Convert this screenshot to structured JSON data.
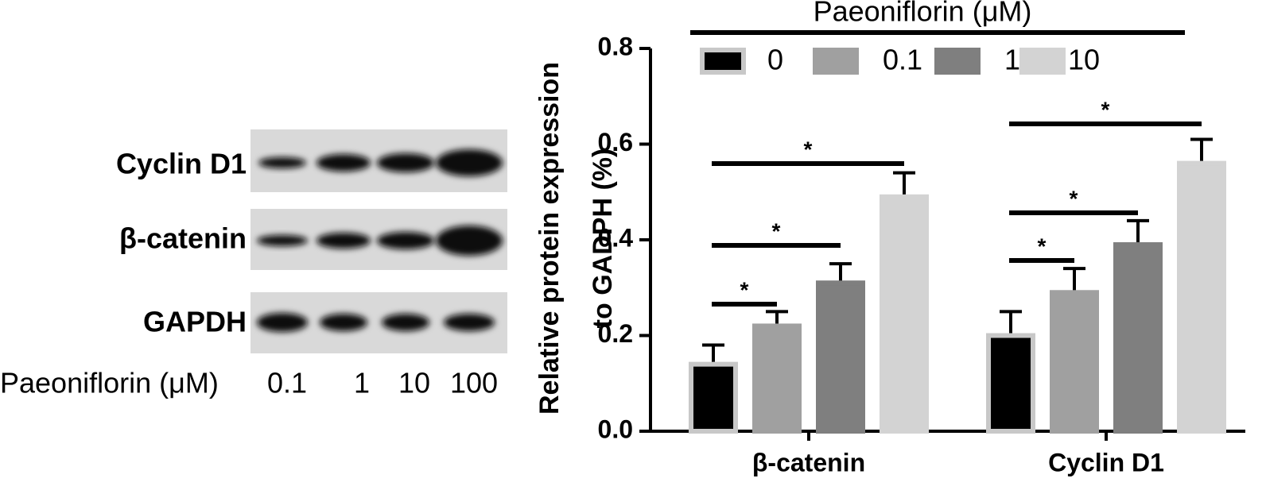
{
  "blot": {
    "rows": [
      "Cyclin D1",
      "β-catenin",
      "GAPDH"
    ],
    "treatment_label": "Paeoniflorin (μM)",
    "lanes": [
      "0.1",
      "1",
      "10",
      "100"
    ]
  },
  "chart_data": {
    "type": "bar",
    "legend_title": "Paeoniflorin (μM)",
    "ylabel": [
      "Relative protein expression",
      "to GADPH (%)"
    ],
    "categories": [
      "β-catenin",
      "Cyclin D1"
    ],
    "series": [
      {
        "name": "0",
        "color": "#000000",
        "values": [
          0.14,
          0.2
        ],
        "errors": [
          0.04,
          0.05
        ]
      },
      {
        "name": "0.1",
        "color": "#a0a0a0",
        "values": [
          0.22,
          0.29
        ],
        "errors": [
          0.03,
          0.05
        ]
      },
      {
        "name": "1",
        "color": "#7f7f7f",
        "values": [
          0.31,
          0.39
        ],
        "errors": [
          0.04,
          0.05
        ]
      },
      {
        "name": "10",
        "color": "#d3d3d3",
        "values": [
          0.49,
          0.56
        ],
        "errors": [
          0.05,
          0.05
        ]
      }
    ],
    "ylim": [
      0,
      0.8
    ],
    "yticks": [
      {
        "value": 0,
        "label": "0.0"
      },
      0.2,
      0.4,
      0.6,
      0.8
    ],
    "annotations": [
      "*",
      "*",
      "*",
      "*",
      "*",
      "*"
    ],
    "legend": "top"
  }
}
